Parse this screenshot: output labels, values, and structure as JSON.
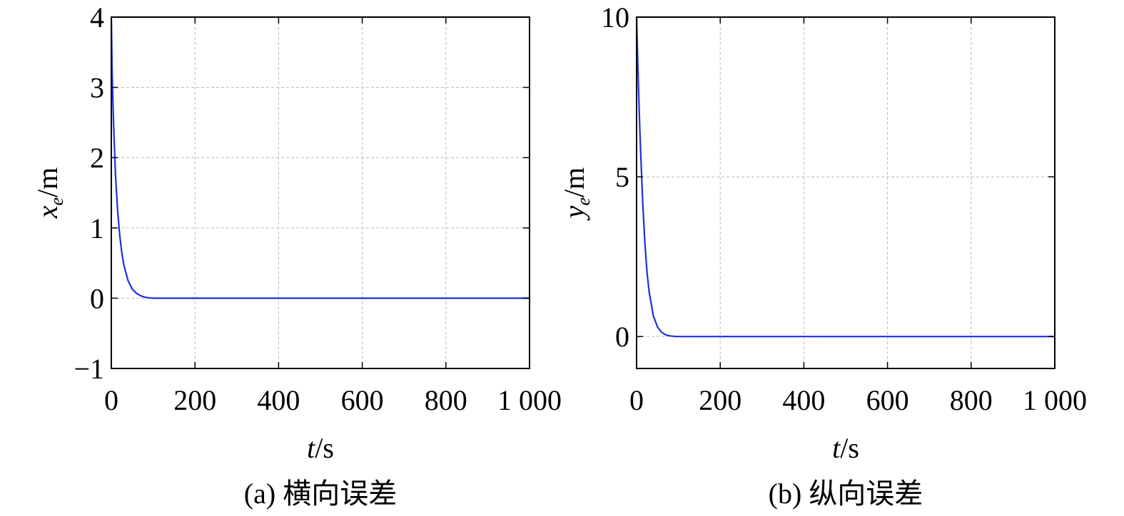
{
  "chart_data": [
    {
      "type": "line",
      "caption": "(a) 横向误差",
      "xlabel_var": "t",
      "xlabel_unit": "/s",
      "ylabel_var": "x",
      "ylabel_sub": "e",
      "ylabel_unit": "/m",
      "xlim": [
        0,
        1000
      ],
      "ylim": [
        -1,
        4
      ],
      "x_ticks": [
        0,
        200,
        400,
        600,
        800,
        1000
      ],
      "x_tick_labels": [
        "0",
        "200",
        "400",
        "600",
        "800",
        "1 000"
      ],
      "y_ticks": [
        -1,
        0,
        1,
        2,
        3,
        4
      ],
      "y_tick_labels": [
        "−1",
        "0",
        "1",
        "2",
        "3",
        "4"
      ],
      "grid": true,
      "line_color": "#1f2fe0",
      "series": [
        {
          "x": [
            0,
            2,
            5,
            8,
            10,
            15,
            20,
            25,
            30,
            40,
            50,
            60,
            70,
            80,
            90,
            100,
            120,
            150,
            200,
            300,
            400,
            500,
            600,
            700,
            800,
            900,
            1000
          ],
          "y": [
            4.0,
            3.2,
            2.55,
            2.05,
            1.75,
            1.25,
            0.9,
            0.65,
            0.47,
            0.25,
            0.13,
            0.07,
            0.035,
            0.015,
            0.005,
            0.0,
            0.0,
            0.0,
            0.0,
            0.0,
            0.0,
            0.0,
            0.0,
            0.0,
            0.0,
            0.0,
            0.0
          ]
        }
      ]
    },
    {
      "type": "line",
      "caption": "(b) 纵向误差",
      "xlabel_var": "t",
      "xlabel_unit": "/s",
      "ylabel_var": "y",
      "ylabel_sub": "e",
      "ylabel_unit": "/m",
      "xlim": [
        0,
        1000
      ],
      "ylim": [
        -1,
        10
      ],
      "x_ticks": [
        0,
        200,
        400,
        600,
        800,
        1000
      ],
      "x_tick_labels": [
        "0",
        "200",
        "400",
        "600",
        "800",
        "1 000"
      ],
      "y_ticks": [
        0,
        5,
        10
      ],
      "y_tick_labels": [
        "0",
        "5",
        "10"
      ],
      "grid": true,
      "line_color": "#1f2fe0",
      "series": [
        {
          "x": [
            0,
            2,
            5,
            8,
            10,
            15,
            20,
            25,
            30,
            40,
            50,
            60,
            70,
            80,
            90,
            100,
            120,
            150,
            200,
            300,
            400,
            500,
            600,
            700,
            800,
            900,
            1000
          ],
          "y": [
            10.0,
            9.0,
            7.6,
            6.4,
            5.7,
            4.1,
            2.9,
            2.0,
            1.4,
            0.65,
            0.3,
            0.13,
            0.05,
            0.02,
            0.005,
            0.0,
            0.0,
            0.0,
            0.0,
            0.0,
            0.0,
            0.0,
            0.0,
            0.0,
            0.0,
            0.0,
            0.0
          ]
        }
      ]
    }
  ]
}
